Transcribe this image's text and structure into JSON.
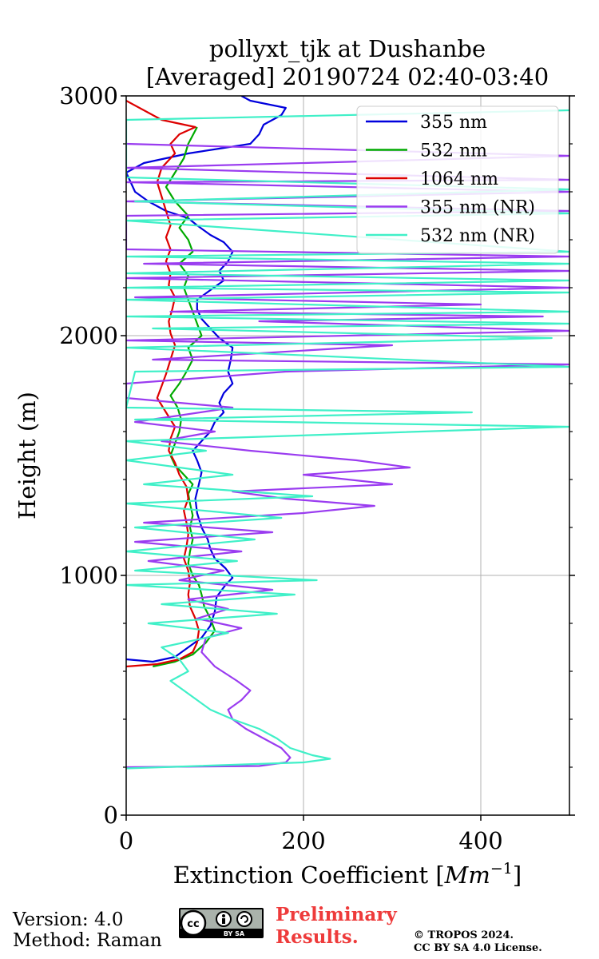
{
  "title": {
    "line1": "pollyxt_tjk at Dushanbe",
    "line2": "[Averaged] 20190724 02:40-03:40"
  },
  "footer": {
    "version": "Version: 4.0",
    "method": "Method: Raman",
    "preliminary_line1": "Preliminary",
    "preliminary_line2": "Results.",
    "copyright_line1": "© TROPOS 2024.",
    "copyright_line2": "CC BY SA 4.0 License.",
    "badge_label": "BY SA",
    "badge_icons": [
      "cc-icon",
      "by-icon",
      "sa-icon"
    ]
  },
  "chart_data": {
    "type": "line",
    "xlabel": "Extinction Coefficient [Mm⁻¹]",
    "ylabel": "Height (m)",
    "xlim": [
      0,
      500
    ],
    "ylim": [
      0,
      3000
    ],
    "xticks": [
      0,
      200,
      400
    ],
    "yticks": [
      0,
      1000,
      2000,
      3000
    ],
    "grid": true,
    "legend_position": "top-right",
    "series": [
      {
        "name": "355 nm",
        "color": "#0000dd",
        "points": [
          [
            0,
            650
          ],
          [
            30,
            640
          ],
          [
            55,
            660
          ],
          [
            70,
            700
          ],
          [
            85,
            740
          ],
          [
            95,
            790
          ],
          [
            100,
            850
          ],
          [
            102,
            910
          ],
          [
            112,
            960
          ],
          [
            120,
            990
          ],
          [
            112,
            1030
          ],
          [
            100,
            1070
          ],
          [
            95,
            1110
          ],
          [
            92,
            1150
          ],
          [
            85,
            1200
          ],
          [
            80,
            1260
          ],
          [
            78,
            1320
          ],
          [
            82,
            1380
          ],
          [
            85,
            1430
          ],
          [
            80,
            1480
          ],
          [
            75,
            1520
          ],
          [
            85,
            1560
          ],
          [
            95,
            1600
          ],
          [
            100,
            1640
          ],
          [
            110,
            1680
          ],
          [
            105,
            1720
          ],
          [
            110,
            1760
          ],
          [
            120,
            1800
          ],
          [
            115,
            1850
          ],
          [
            118,
            1900
          ],
          [
            120,
            1950
          ],
          [
            105,
            1990
          ],
          [
            95,
            2030
          ],
          [
            85,
            2070
          ],
          [
            80,
            2110
          ],
          [
            80,
            2150
          ],
          [
            95,
            2190
          ],
          [
            110,
            2230
          ],
          [
            105,
            2270
          ],
          [
            115,
            2310
          ],
          [
            120,
            2350
          ],
          [
            110,
            2390
          ],
          [
            95,
            2420
          ],
          [
            80,
            2460
          ],
          [
            70,
            2490
          ],
          [
            45,
            2520
          ],
          [
            25,
            2560
          ],
          [
            10,
            2600
          ],
          [
            5,
            2640
          ],
          [
            0,
            2680
          ],
          [
            20,
            2720
          ],
          [
            70,
            2760
          ],
          [
            140,
            2800
          ],
          [
            150,
            2840
          ],
          [
            155,
            2880
          ],
          [
            175,
            2920
          ],
          [
            180,
            2950
          ],
          [
            140,
            2980
          ],
          [
            130,
            3000
          ]
        ]
      },
      {
        "name": "532 nm",
        "color": "#00aa00",
        "points": [
          [
            30,
            620
          ],
          [
            55,
            640
          ],
          [
            75,
            670
          ],
          [
            90,
            720
          ],
          [
            100,
            770
          ],
          [
            95,
            820
          ],
          [
            88,
            870
          ],
          [
            85,
            920
          ],
          [
            82,
            960
          ],
          [
            75,
            1000
          ],
          [
            70,
            1050
          ],
          [
            72,
            1100
          ],
          [
            75,
            1150
          ],
          [
            72,
            1200
          ],
          [
            75,
            1250
          ],
          [
            72,
            1300
          ],
          [
            70,
            1340
          ],
          [
            75,
            1380
          ],
          [
            65,
            1420
          ],
          [
            55,
            1460
          ],
          [
            50,
            1500
          ],
          [
            55,
            1550
          ],
          [
            60,
            1600
          ],
          [
            62,
            1650
          ],
          [
            58,
            1700
          ],
          [
            50,
            1750
          ],
          [
            60,
            1800
          ],
          [
            68,
            1850
          ],
          [
            75,
            1900
          ],
          [
            70,
            1950
          ],
          [
            85,
            2000
          ],
          [
            80,
            2050
          ],
          [
            75,
            2100
          ],
          [
            70,
            2150
          ],
          [
            65,
            2200
          ],
          [
            70,
            2250
          ],
          [
            60,
            2300
          ],
          [
            75,
            2350
          ],
          [
            70,
            2400
          ],
          [
            60,
            2450
          ],
          [
            70,
            2500
          ],
          [
            55,
            2560
          ],
          [
            45,
            2620
          ],
          [
            55,
            2680
          ],
          [
            65,
            2740
          ],
          [
            70,
            2800
          ],
          [
            80,
            2870
          ]
        ]
      },
      {
        "name": "1064 nm",
        "color": "#dd0000",
        "points": [
          [
            0,
            620
          ],
          [
            35,
            630
          ],
          [
            60,
            650
          ],
          [
            75,
            680
          ],
          [
            80,
            720
          ],
          [
            82,
            770
          ],
          [
            78,
            820
          ],
          [
            72,
            870
          ],
          [
            70,
            920
          ],
          [
            72,
            970
          ],
          [
            70,
            1020
          ],
          [
            65,
            1070
          ],
          [
            68,
            1120
          ],
          [
            70,
            1170
          ],
          [
            68,
            1220
          ],
          [
            65,
            1270
          ],
          [
            70,
            1320
          ],
          [
            68,
            1370
          ],
          [
            60,
            1420
          ],
          [
            55,
            1470
          ],
          [
            48,
            1520
          ],
          [
            50,
            1570
          ],
          [
            55,
            1620
          ],
          [
            45,
            1680
          ],
          [
            35,
            1740
          ],
          [
            40,
            1790
          ],
          [
            45,
            1840
          ],
          [
            50,
            1900
          ],
          [
            55,
            1960
          ],
          [
            50,
            2010
          ],
          [
            48,
            2060
          ],
          [
            52,
            2110
          ],
          [
            55,
            2160
          ],
          [
            48,
            2210
          ],
          [
            50,
            2260
          ],
          [
            45,
            2310
          ],
          [
            50,
            2360
          ],
          [
            45,
            2410
          ],
          [
            50,
            2460
          ],
          [
            45,
            2520
          ],
          [
            40,
            2580
          ],
          [
            35,
            2640
          ],
          [
            40,
            2700
          ],
          [
            55,
            2760
          ],
          [
            50,
            2800
          ],
          [
            60,
            2840
          ],
          [
            78,
            2870
          ],
          [
            40,
            2900
          ],
          [
            0,
            2980
          ]
        ]
      },
      {
        "name": "355 nm (NR)",
        "color": "#9a3cf0",
        "points": [
          [
            0,
            200
          ],
          [
            150,
            205
          ],
          [
            180,
            220
          ],
          [
            185,
            240
          ],
          [
            175,
            280
          ],
          [
            155,
            320
          ],
          [
            135,
            360
          ],
          [
            120,
            400
          ],
          [
            115,
            440
          ],
          [
            130,
            480
          ],
          [
            140,
            520
          ],
          [
            125,
            560
          ],
          [
            100,
            620
          ],
          [
            85,
            680
          ],
          [
            90,
            740
          ],
          [
            130,
            780
          ],
          [
            80,
            820
          ],
          [
            115,
            860
          ],
          [
            70,
            900
          ],
          [
            165,
            940
          ],
          [
            60,
            980
          ],
          [
            110,
            1020
          ],
          [
            25,
            1060
          ],
          [
            130,
            1100
          ],
          [
            10,
            1140
          ],
          [
            165,
            1180
          ],
          [
            20,
            1220
          ],
          [
            200,
            1260
          ],
          [
            280,
            1290
          ],
          [
            180,
            1320
          ],
          [
            120,
            1350
          ],
          [
            300,
            1380
          ],
          [
            200,
            1420
          ],
          [
            320,
            1450
          ],
          [
            260,
            1480
          ],
          [
            140,
            1520
          ],
          [
            40,
            1560
          ],
          [
            100,
            1600
          ],
          [
            10,
            1640
          ],
          [
            120,
            1700
          ],
          [
            0,
            1740
          ],
          [
            0,
            1800
          ],
          [
            180,
            1850
          ],
          [
            500,
            1880
          ],
          [
            30,
            1900
          ],
          [
            300,
            1960
          ],
          [
            0,
            1980
          ],
          [
            500,
            2020
          ],
          [
            150,
            2060
          ],
          [
            470,
            2080
          ],
          [
            50,
            2100
          ],
          [
            400,
            2130
          ],
          [
            10,
            2160
          ],
          [
            500,
            2200
          ],
          [
            250,
            2220
          ],
          [
            0,
            2240
          ],
          [
            500,
            2270
          ],
          [
            20,
            2300
          ],
          [
            500,
            2330
          ],
          [
            0,
            2360
          ],
          [
            0,
            2500
          ],
          [
            500,
            2520
          ],
          [
            0,
            2560
          ],
          [
            500,
            2600
          ],
          [
            0,
            2640
          ],
          [
            500,
            2650
          ],
          [
            0,
            2700
          ],
          [
            500,
            2750
          ],
          [
            0,
            2800
          ]
        ]
      },
      {
        "name": "532 nm (NR)",
        "color": "#40f0c8",
        "points": [
          [
            0,
            195
          ],
          [
            200,
            220
          ],
          [
            230,
            235
          ],
          [
            210,
            250
          ],
          [
            185,
            280
          ],
          [
            170,
            320
          ],
          [
            150,
            360
          ],
          [
            120,
            400
          ],
          [
            95,
            440
          ],
          [
            80,
            480
          ],
          [
            65,
            520
          ],
          [
            50,
            560
          ],
          [
            70,
            600
          ],
          [
            60,
            650
          ],
          [
            40,
            700
          ],
          [
            115,
            760
          ],
          [
            25,
            800
          ],
          [
            170,
            840
          ],
          [
            40,
            880
          ],
          [
            190,
            920
          ],
          [
            0,
            960
          ],
          [
            215,
            980
          ],
          [
            10,
            1020
          ],
          [
            125,
            1060
          ],
          [
            0,
            1100
          ],
          [
            145,
            1150
          ],
          [
            10,
            1200
          ],
          [
            175,
            1240
          ],
          [
            0,
            1300
          ],
          [
            210,
            1330
          ],
          [
            20,
            1380
          ],
          [
            120,
            1420
          ],
          [
            0,
            1480
          ],
          [
            90,
            1520
          ],
          [
            0,
            1560
          ],
          [
            500,
            1620
          ],
          [
            10,
            1650
          ],
          [
            390,
            1680
          ],
          [
            0,
            1700
          ],
          [
            10,
            1850
          ],
          [
            500,
            1870
          ],
          [
            0,
            1950
          ],
          [
            480,
            1990
          ],
          [
            30,
            2030
          ],
          [
            500,
            2050
          ],
          [
            0,
            2080
          ],
          [
            500,
            2100
          ],
          [
            0,
            2150
          ],
          [
            500,
            2180
          ],
          [
            0,
            2200
          ],
          [
            500,
            2230
          ],
          [
            0,
            2260
          ],
          [
            500,
            2300
          ],
          [
            0,
            2330
          ],
          [
            500,
            2350
          ],
          [
            0,
            2480
          ],
          [
            500,
            2510
          ],
          [
            10,
            2560
          ],
          [
            500,
            2610
          ],
          [
            0,
            2660
          ],
          [
            0,
            2900
          ],
          [
            500,
            2940
          ]
        ]
      }
    ]
  }
}
